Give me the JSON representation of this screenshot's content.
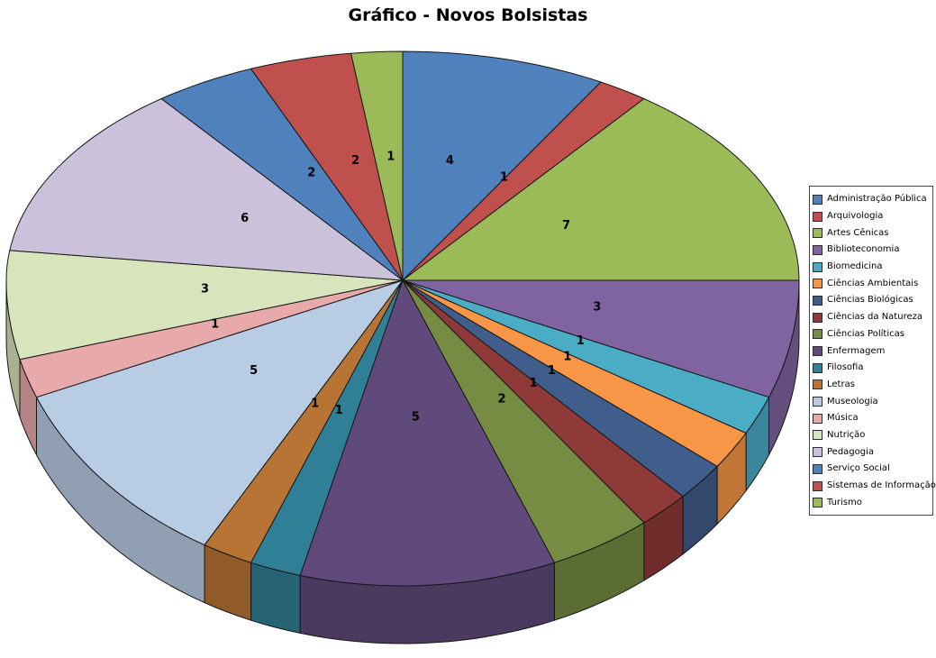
{
  "chart_data": {
    "type": "pie",
    "projection": "3d",
    "title": "Gráfico - Novos Bolsistas",
    "start_angle_deg": 0,
    "direction": "clockwise",
    "total": 48,
    "show_data_labels": true,
    "legend_position": "right",
    "categories": [
      "Administração Pública",
      "Arquivologia",
      "Artes Cênicas",
      "Biblioteconomia",
      "Biomedicina",
      "Ciências Ambientais",
      "Ciências Biológicas",
      "Ciências da Natureza",
      "Ciências Políticas",
      "Enfermagem",
      "Filosofia",
      "Letras",
      "Museologia",
      "Música",
      "Nutrição",
      "Pedagogia",
      "Serviço Social",
      "Sistemas de Informação",
      "Turismo"
    ],
    "values": [
      4,
      1,
      7,
      3,
      1,
      1,
      1,
      1,
      2,
      5,
      1,
      1,
      5,
      1,
      3,
      6,
      2,
      2,
      1
    ],
    "colors": [
      "#4F81BD",
      "#C0504D",
      "#9BBB59",
      "#8064A2",
      "#4BACC6",
      "#F79646",
      "#405E8C",
      "#8F3A38",
      "#758C42",
      "#5F4A7B",
      "#2F7F96",
      "#B87434",
      "#B8CCE4",
      "#E8A9AB",
      "#D7E4BC",
      "#CCC1DA",
      "#4F81BD",
      "#C0504D",
      "#9BBB59"
    ]
  }
}
